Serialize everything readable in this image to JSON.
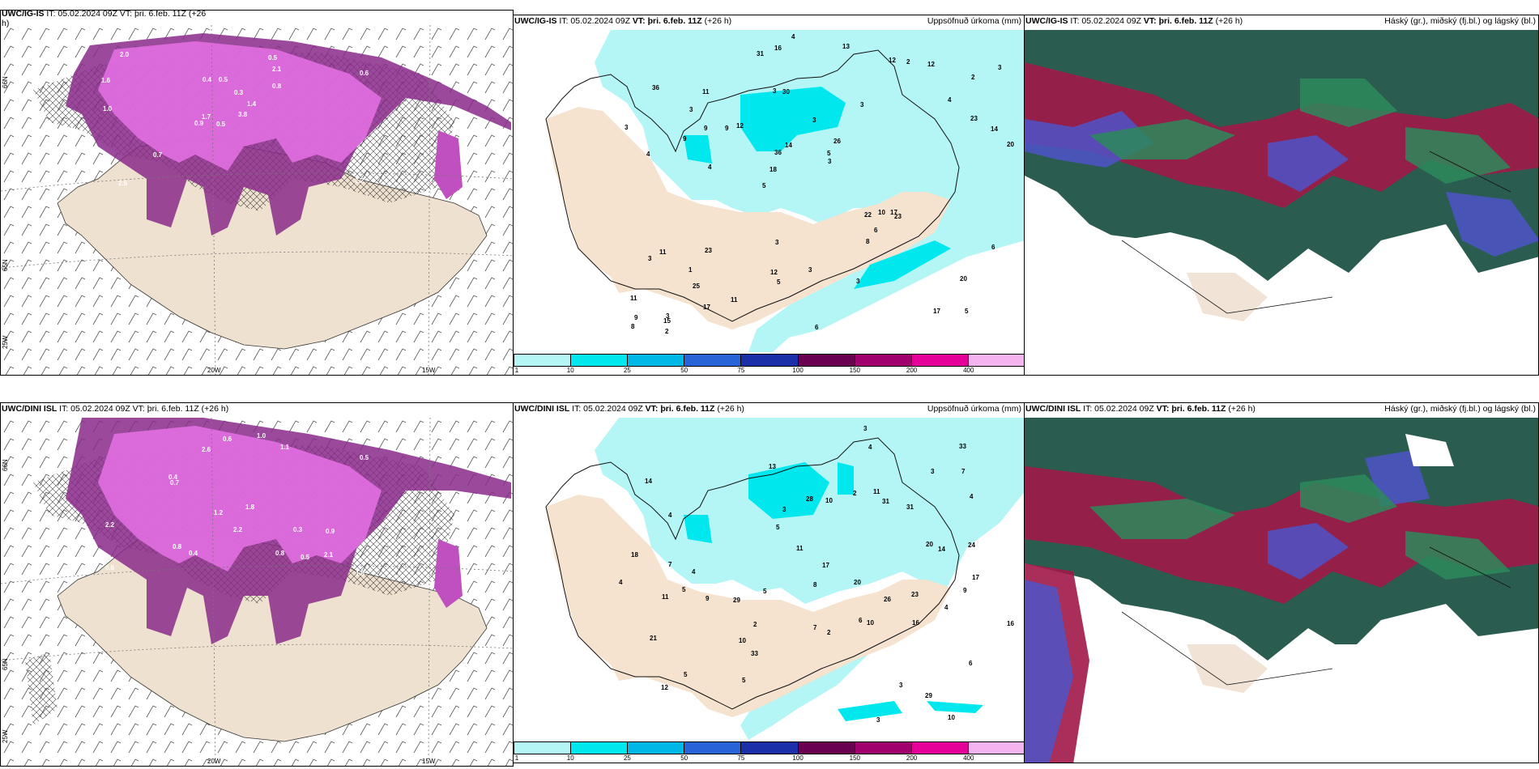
{
  "rows": [
    {
      "model": "UWC/IG-IS",
      "left_title_prefix": "UWC/IG-IS",
      "left_title_rest": " IT: 05.02.2024 09Z VT: þri. 6.feb. 11Z (+26",
      "left_title_wrap": "h)",
      "mid_title_model": "UWC/IG-IS",
      "mid_title_it": " IT: 05.02.2024 09Z ",
      "mid_title_vt": "VT: þri. 6.feb. 11Z",
      "mid_title_lead": " (+26 h)",
      "mid_right": "Uppsöfnuð úrkoma (mm)",
      "right_title_model": "UWC/IG-IS",
      "right_title_it": " IT: 05.02.2024 09Z ",
      "right_title_vt": "VT: þri. 6.feb. 11Z",
      "right_title_lead": " (+26 h)",
      "right_right": "Háský (gr.), miðský (fj.bl.) og lágský (bl.)",
      "precip_labels": [
        "5",
        "4",
        "2",
        "5",
        "3",
        "3",
        "3",
        "3",
        "11",
        "12",
        "11",
        "25",
        "30",
        "26",
        "23",
        "36",
        "16",
        "20",
        "22",
        "23",
        "18",
        "12",
        "36",
        "11",
        "12",
        "23",
        "17",
        "20",
        "17",
        "6",
        "9",
        "9",
        "8",
        "17",
        "14",
        "5",
        "9",
        "5",
        "3",
        "3",
        "4",
        "3",
        "6",
        "3",
        "1",
        "2",
        "8",
        "3",
        "12",
        "4",
        "4",
        "3",
        "3",
        "2",
        "15",
        "13",
        "31",
        "14",
        "6",
        "3",
        "11",
        "10",
        "9"
      ],
      "wind_labels": [
        "0.5",
        "1.6",
        "1.7",
        "0.9",
        "1.4",
        "0.7",
        "0.5",
        "0.5",
        "2.1",
        "3.8",
        "2.0",
        "2.2",
        "1.0",
        "0.6",
        "0.9",
        "0.8",
        "2.5",
        "0.4",
        "0.3"
      ]
    },
    {
      "model": "UWC/DINI ISL",
      "left_title_prefix": "UWC/DINI ISL",
      "left_title_rest": " IT: 05.02.2024 09Z VT: þri. 6.feb. 11Z (+26 h)",
      "left_title_wrap": "",
      "mid_title_model": "UWC/DINI ISL",
      "mid_title_it": " IT: 05.02.2024 09Z ",
      "mid_title_vt": "VT: þri. 6.feb. 11Z",
      "mid_title_lead": " (+26 h)",
      "mid_right": "Uppsöfnuð úrkoma (mm)",
      "right_title_model": "UWC/DINI ISL",
      "right_title_it": " IT: 05.02.2024 09Z ",
      "right_title_vt": "VT: þri. 6.feb. 11Z",
      "right_title_lead": " (+26 h)",
      "right_right": "Háský (gr.), miðský (fj.bl.) og lágský (bl.)",
      "precip_labels": [
        "10",
        "5",
        "6",
        "14",
        "6",
        "4",
        "5",
        "29",
        "31",
        "28",
        "31",
        "29",
        "33",
        "13",
        "20",
        "21",
        "23",
        "17",
        "18",
        "12",
        "33",
        "10",
        "20",
        "16",
        "17",
        "7",
        "9",
        "8",
        "11",
        "7",
        "10",
        "11",
        "10",
        "11",
        "3",
        "4",
        "9",
        "3",
        "3",
        "3",
        "2",
        "2",
        "5",
        "3",
        "5",
        "4",
        "4",
        "4",
        "2",
        "7",
        "26",
        "24",
        "16",
        "14",
        "5",
        "4"
      ],
      "wind_labels": [
        "0.6",
        "0.9",
        "1.8",
        "2.2",
        "2.6",
        "1.0",
        "2.1",
        "1.1",
        "0.5",
        "0.8",
        "1.5",
        "0.7",
        "0.4",
        "0.6",
        "0.8",
        "0.4",
        "0.3",
        "2.2",
        "1.2",
        "0.5"
      ]
    }
  ],
  "axes": {
    "lon_labels": [
      "20W",
      "15W"
    ],
    "lat_labels_top": [
      "66N",
      "65N",
      "25W"
    ],
    "lat_labels_mid": "66N"
  },
  "colorbar": {
    "ticks": [
      "1",
      "10",
      "25",
      "50",
      "75",
      "100",
      "150",
      "200",
      "400"
    ],
    "colors": [
      "#b4f5f5",
      "#00e8ee",
      "#00b8e6",
      "#2864d8",
      "#1a2fa8",
      "#6a0050",
      "#a0006e",
      "#e6009a",
      "#f5b4f0"
    ]
  }
}
